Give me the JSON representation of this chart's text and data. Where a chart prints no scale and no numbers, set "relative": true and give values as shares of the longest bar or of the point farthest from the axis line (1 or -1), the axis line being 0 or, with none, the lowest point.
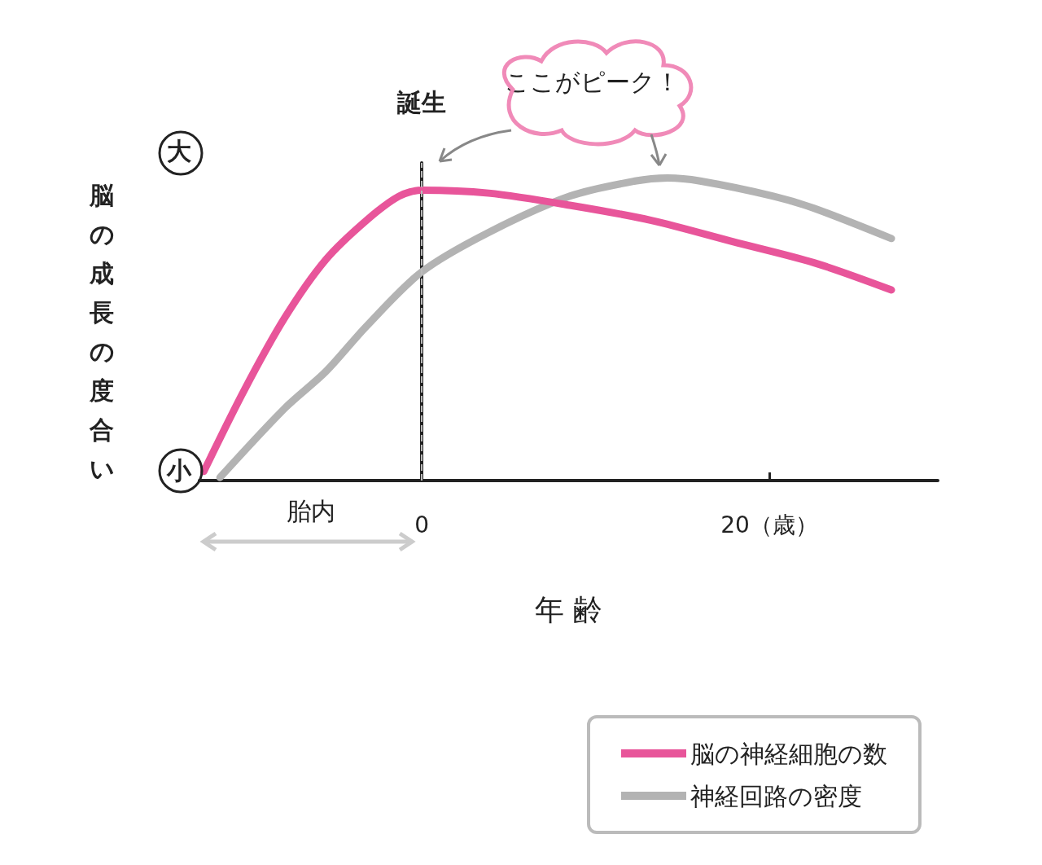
{
  "chart_data": {
    "type": "line",
    "relative": true,
    "xlabel": "年 齢",
    "ylabel": "脳の成長の度合い",
    "xlim": [
      -12.8,
      29.7
    ],
    "xticks": [
      0,
      {
        "value": 20,
        "label": "20（歳）"
      }
    ],
    "series": [
      {
        "name": "脳の神経細胞の数",
        "color": "#e8559a",
        "x": [
          -12.55,
          -10.21,
          -7.87,
          -5.53,
          -3.19,
          -1.31,
          0,
          3.84,
          8.52,
          13.21,
          17.89,
          22.58,
          27.03
        ],
        "values": [
          0.03,
          0.3,
          0.54,
          0.73,
          0.86,
          0.94,
          0.96,
          0.95,
          0.91,
          0.86,
          0.79,
          0.72,
          0.63
        ]
      },
      {
        "name": "神経回路の密度",
        "color": "#b3b3b3",
        "x": [
          -11.62,
          -7.87,
          -5.53,
          -3.19,
          0,
          3.84,
          8.52,
          12.27,
          14.15,
          16.02,
          20.23,
          22.58,
          27.03
        ],
        "values": [
          0.01,
          0.24,
          0.36,
          0.51,
          0.69,
          0.82,
          0.94,
          0.99,
          1,
          0.99,
          0.94,
          0.9,
          0.8
        ]
      }
    ],
    "ref_lines": [
      {
        "axis": "x",
        "value": 0,
        "label": "誕生",
        "color": "#bbbbbb",
        "line_style": "dashed"
      }
    ],
    "annotations": [
      "大",
      "小",
      "ここがピーク！",
      "胎内"
    ],
    "legend": "bottom right",
    "grid": false,
    "marker": "none",
    "line_style": "solid"
  }
}
